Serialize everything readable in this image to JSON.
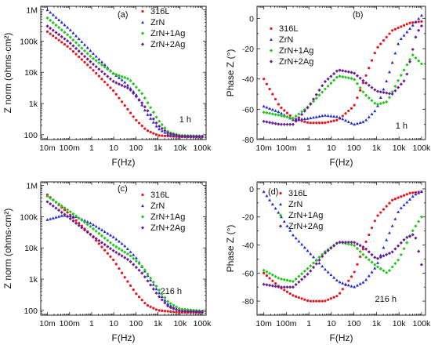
{
  "colors": {
    "316L": "#e8141e",
    "ZrN": "#1f2bd4",
    "ZrN+1Ag": "#27c41f",
    "ZrN+2Ag": "#6a1f8f"
  },
  "chart_data": [
    {
      "type": "scatter",
      "panel": "(a)",
      "time": "1 h",
      "xlabel": "F(Hz)",
      "ylabel": "Z norm (ohms·cm²)",
      "xscale": "log",
      "yscale": "log",
      "xlim": [
        0.005,
        150000
      ],
      "ylim": [
        70,
        1300000
      ],
      "xticks": [
        {
          "v": 0.01,
          "t": "10m"
        },
        {
          "v": 0.1,
          "t": "100m"
        },
        {
          "v": 1,
          "t": "1"
        },
        {
          "v": 10,
          "t": "10"
        },
        {
          "v": 100,
          "t": "100"
        },
        {
          "v": 1000,
          "t": "1k"
        },
        {
          "v": 10000,
          "t": "10k"
        },
        {
          "v": 100000,
          "t": "100k"
        }
      ],
      "yticks": [
        {
          "v": 100,
          "t": "100"
        },
        {
          "v": 1000,
          "t": "1k"
        },
        {
          "v": 10000,
          "t": "10k"
        },
        {
          "v": 100000,
          "t": "100k"
        },
        {
          "v": 1000000,
          "t": "1M"
        }
      ],
      "legend": "top-right",
      "series": [
        {
          "name": "316L",
          "points": [
            [
              0.01,
              200000
            ],
            [
              0.1,
              60000
            ],
            [
              1,
              13000
            ],
            [
              10,
              2500
            ],
            [
              30,
              900
            ],
            [
              100,
              300
            ],
            [
              300,
              140
            ],
            [
              1000,
              95
            ],
            [
              10000,
              85
            ],
            [
              100000,
              85
            ]
          ]
        },
        {
          "name": "ZrN",
          "points": [
            [
              0.01,
              1000000
            ],
            [
              0.1,
              240000
            ],
            [
              1,
              45000
            ],
            [
              10,
              9000
            ],
            [
              30,
              5000
            ],
            [
              100,
              2000
            ],
            [
              300,
              500
            ],
            [
              1000,
              160
            ],
            [
              3000,
              100
            ],
            [
              10000,
              90
            ],
            [
              100000,
              88
            ]
          ]
        },
        {
          "name": "ZrN+1Ag",
          "points": [
            [
              0.01,
              550000
            ],
            [
              0.1,
              140000
            ],
            [
              1,
              30000
            ],
            [
              10,
              9000
            ],
            [
              50,
              6000
            ],
            [
              200,
              2000
            ],
            [
              1000,
              300
            ],
            [
              3000,
              120
            ],
            [
              10000,
              95
            ],
            [
              100000,
              90
            ]
          ]
        },
        {
          "name": "ZrN+2Ag",
          "points": [
            [
              0.01,
              300000
            ],
            [
              0.1,
              90000
            ],
            [
              1,
              20000
            ],
            [
              10,
              5000
            ],
            [
              50,
              3000
            ],
            [
              200,
              1000
            ],
            [
              1000,
              200
            ],
            [
              3000,
              110
            ],
            [
              10000,
              90
            ],
            [
              100000,
              88
            ]
          ]
        }
      ]
    },
    {
      "type": "scatter",
      "panel": "(b)",
      "time": "1 h",
      "xlabel": "F(Hz)",
      "ylabel": "Phase Z (°)",
      "xscale": "log",
      "yscale": "linear",
      "xlim": [
        0.005,
        150000
      ],
      "ylim": [
        -80,
        8
      ],
      "xticks": [
        {
          "v": 0.01,
          "t": "10m"
        },
        {
          "v": 0.1,
          "t": "100m"
        },
        {
          "v": 1,
          "t": "1"
        },
        {
          "v": 10,
          "t": "10"
        },
        {
          "v": 100,
          "t": "100"
        },
        {
          "v": 1000,
          "t": "1k"
        },
        {
          "v": 10000,
          "t": "10k"
        },
        {
          "v": 100000,
          "t": "100k"
        }
      ],
      "yticks": [
        {
          "v": 0,
          "t": "0"
        },
        {
          "v": -20,
          "t": "-20"
        },
        {
          "v": -40,
          "t": "-40"
        },
        {
          "v": -60,
          "t": "-60"
        },
        {
          "v": -80,
          "t": "-80"
        }
      ],
      "legend": "top-left",
      "series": [
        {
          "name": "316L",
          "points": [
            [
              0.01,
              -40
            ],
            [
              0.05,
              -58
            ],
            [
              0.2,
              -66
            ],
            [
              1,
              -69
            ],
            [
              5,
              -69
            ],
            [
              20,
              -67
            ],
            [
              100,
              -58
            ],
            [
              300,
              -40
            ],
            [
              1000,
              -20
            ],
            [
              5000,
              -8
            ],
            [
              30000,
              -3
            ],
            [
              100000,
              -2
            ]
          ]
        },
        {
          "name": "ZrN",
          "points": [
            [
              0.01,
              -58
            ],
            [
              0.05,
              -62
            ],
            [
              0.2,
              -67
            ],
            [
              1,
              -66
            ],
            [
              5,
              -64
            ],
            [
              20,
              -65
            ],
            [
              100,
              -70
            ],
            [
              300,
              -68
            ],
            [
              1000,
              -60
            ],
            [
              3000,
              -40
            ],
            [
              10000,
              -15
            ],
            [
              50000,
              -3
            ],
            [
              100000,
              2
            ]
          ]
        },
        {
          "name": "ZrN+1Ag",
          "points": [
            [
              0.01,
              -62
            ],
            [
              0.05,
              -64
            ],
            [
              0.2,
              -66
            ],
            [
              1,
              -58
            ],
            [
              5,
              -47
            ],
            [
              20,
              -38
            ],
            [
              100,
              -40
            ],
            [
              300,
              -50
            ],
            [
              1000,
              -57
            ],
            [
              3000,
              -55
            ],
            [
              10000,
              -40
            ],
            [
              40000,
              -24
            ],
            [
              100000,
              -30
            ]
          ]
        },
        {
          "name": "ZrN+2Ag",
          "points": [
            [
              0.01,
              -68
            ],
            [
              0.05,
              -70
            ],
            [
              0.2,
              -70
            ],
            [
              1,
              -58
            ],
            [
              5,
              -42
            ],
            [
              20,
              -34
            ],
            [
              100,
              -36
            ],
            [
              300,
              -42
            ],
            [
              1000,
              -48
            ],
            [
              5000,
              -50
            ],
            [
              20000,
              -40
            ],
            [
              60000,
              -10
            ],
            [
              100000,
              -5
            ]
          ]
        }
      ]
    },
    {
      "type": "scatter",
      "panel": "(c)",
      "time": "216 h",
      "xlabel": "F(Hz)",
      "ylabel": "Z norm (ohms·cm²)",
      "xscale": "log",
      "yscale": "log",
      "xlim": [
        0.005,
        150000
      ],
      "ylim": [
        70,
        1300000
      ],
      "xticks": [
        {
          "v": 0.01,
          "t": "10m"
        },
        {
          "v": 0.1,
          "t": "100m"
        },
        {
          "v": 1,
          "t": "1"
        },
        {
          "v": 10,
          "t": "10"
        },
        {
          "v": 100,
          "t": "100"
        },
        {
          "v": 1000,
          "t": "1k"
        },
        {
          "v": 10000,
          "t": "10k"
        },
        {
          "v": 100000,
          "t": "100k"
        }
      ],
      "yticks": [
        {
          "v": 100,
          "t": "100"
        },
        {
          "v": 1000,
          "t": "1k"
        },
        {
          "v": 10000,
          "t": "10k"
        },
        {
          "v": 100000,
          "t": "100k"
        },
        {
          "v": 1000000,
          "t": "1M"
        }
      ],
      "legend": "top-right",
      "series": [
        {
          "name": "316L",
          "points": [
            [
              0.01,
              500000
            ],
            [
              0.1,
              120000
            ],
            [
              1,
              25000
            ],
            [
              10,
              4000
            ],
            [
              30,
              1200
            ],
            [
              100,
              350
            ],
            [
              300,
              150
            ],
            [
              1000,
              100
            ],
            [
              10000,
              85
            ],
            [
              100000,
              85
            ]
          ]
        },
        {
          "name": "ZrN",
          "points": [
            [
              0.01,
              80000
            ],
            [
              0.05,
              110000
            ],
            [
              0.2,
              100000
            ],
            [
              1,
              60000
            ],
            [
              10,
              22000
            ],
            [
              30,
              12000
            ],
            [
              100,
              5000
            ],
            [
              300,
              1500
            ],
            [
              1000,
              400
            ],
            [
              3000,
              150
            ],
            [
              10000,
              100
            ],
            [
              100000,
              90
            ]
          ]
        },
        {
          "name": "ZrN+1Ag",
          "points": [
            [
              0.01,
              450000
            ],
            [
              0.1,
              150000
            ],
            [
              1,
              45000
            ],
            [
              10,
              12000
            ],
            [
              50,
              6000
            ],
            [
              200,
              2500
            ],
            [
              1000,
              500
            ],
            [
              3000,
              180
            ],
            [
              10000,
              110
            ],
            [
              100000,
              95
            ]
          ]
        },
        {
          "name": "ZrN+2Ag",
          "points": [
            [
              0.01,
              300000
            ],
            [
              0.1,
              90000
            ],
            [
              1,
              25000
            ],
            [
              10,
              8000
            ],
            [
              50,
              4000
            ],
            [
              200,
              1500
            ],
            [
              1000,
              300
            ],
            [
              3000,
              130
            ],
            [
              10000,
              95
            ],
            [
              100000,
              90
            ]
          ]
        }
      ]
    },
    {
      "type": "scatter",
      "panel": "(d)",
      "time": "216 h",
      "xlabel": "F(Hz)",
      "ylabel": "Phase Z (°)",
      "xscale": "log",
      "yscale": "linear",
      "xlim": [
        0.005,
        150000
      ],
      "ylim": [
        -90,
        5
      ],
      "xticks": [
        {
          "v": 0.01,
          "t": "10m"
        },
        {
          "v": 0.1,
          "t": "100m"
        },
        {
          "v": 1,
          "t": "1"
        },
        {
          "v": 10,
          "t": "10"
        },
        {
          "v": 100,
          "t": "100"
        },
        {
          "v": 1000,
          "t": "1k"
        },
        {
          "v": 10000,
          "t": "10k"
        },
        {
          "v": 100000,
          "t": "100k"
        }
      ],
      "yticks": [
        {
          "v": 0,
          "t": "0"
        },
        {
          "v": -20,
          "t": "-20"
        },
        {
          "v": -40,
          "t": "-40"
        },
        {
          "v": -60,
          "t": "-60"
        },
        {
          "v": -80,
          "t": "-80"
        }
      ],
      "legend": "top-center",
      "series": [
        {
          "name": "316L",
          "points": [
            [
              0.01,
              -60
            ],
            [
              0.05,
              -70
            ],
            [
              0.2,
              -76
            ],
            [
              1,
              -80
            ],
            [
              5,
              -80
            ],
            [
              20,
              -76
            ],
            [
              100,
              -60
            ],
            [
              300,
              -40
            ],
            [
              1000,
              -20
            ],
            [
              5000,
              -8
            ],
            [
              30000,
              -3
            ],
            [
              100000,
              -2
            ]
          ]
        },
        {
          "name": "ZrN",
          "points": [
            [
              0.01,
              -2
            ],
            [
              0.05,
              -18
            ],
            [
              0.2,
              -33
            ],
            [
              1,
              -45
            ],
            [
              5,
              -57
            ],
            [
              20,
              -66
            ],
            [
              100,
              -70
            ],
            [
              300,
              -66
            ],
            [
              1000,
              -55
            ],
            [
              3000,
              -35
            ],
            [
              10000,
              -15
            ],
            [
              50000,
              -4
            ],
            [
              100000,
              -2
            ]
          ]
        },
        {
          "name": "ZrN+1Ag",
          "points": [
            [
              0.01,
              -58
            ],
            [
              0.05,
              -64
            ],
            [
              0.2,
              -66
            ],
            [
              1,
              -56
            ],
            [
              5,
              -45
            ],
            [
              20,
              -38
            ],
            [
              100,
              -40
            ],
            [
              300,
              -48
            ],
            [
              1000,
              -55
            ],
            [
              3000,
              -60
            ],
            [
              10000,
              -50
            ],
            [
              40000,
              -30
            ],
            [
              100000,
              -20
            ]
          ]
        },
        {
          "name": "ZrN+2Ag",
          "points": [
            [
              0.01,
              -68
            ],
            [
              0.05,
              -70
            ],
            [
              0.2,
              -70
            ],
            [
              1,
              -60
            ],
            [
              5,
              -46
            ],
            [
              20,
              -38
            ],
            [
              100,
              -38
            ],
            [
              300,
              -42
            ],
            [
              1000,
              -50
            ],
            [
              5000,
              -45
            ],
            [
              20000,
              -35
            ],
            [
              50000,
              -32
            ],
            [
              100000,
              -54
            ]
          ]
        }
      ]
    }
  ]
}
